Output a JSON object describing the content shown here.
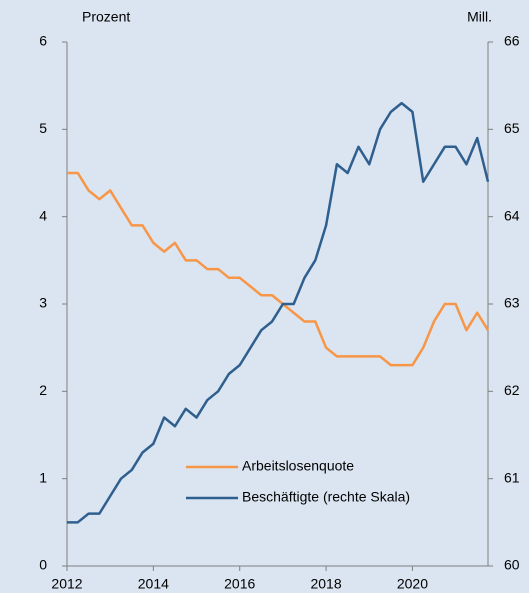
{
  "chart_data": {
    "type": "line",
    "y_label": "Prozent",
    "y2_label": "Mill.",
    "x": [
      2012,
      2012.25,
      2012.5,
      2012.75,
      2013,
      2013.25,
      2013.5,
      2013.75,
      2014,
      2014.25,
      2014.5,
      2014.75,
      2015,
      2015.25,
      2015.5,
      2015.75,
      2016,
      2016.25,
      2016.5,
      2016.75,
      2017,
      2017.25,
      2017.5,
      2017.75,
      2018,
      2018.25,
      2018.5,
      2018.75,
      2019,
      2019.25,
      2019.5,
      2019.75,
      2020,
      2020.25,
      2020.5,
      2020.75,
      2021,
      2021.25,
      2021.5,
      2021.75
    ],
    "series": [
      {
        "name": "Arbeitslosenquote",
        "color": "#f79646",
        "axis": "y",
        "values": [
          4.5,
          4.5,
          4.3,
          4.2,
          4.3,
          4.1,
          3.9,
          3.9,
          3.7,
          3.6,
          3.7,
          3.5,
          3.5,
          3.4,
          3.4,
          3.3,
          3.3,
          3.2,
          3.1,
          3.1,
          3.0,
          2.9,
          2.8,
          2.8,
          2.5,
          2.4,
          2.4,
          2.4,
          2.4,
          2.4,
          2.3,
          2.3,
          2.3,
          2.5,
          2.8,
          3.0,
          3.0,
          2.7,
          2.9,
          2.7
        ]
      },
      {
        "name": "Beschäftigte (rechte Skala)",
        "color": "#2f5f8f",
        "axis": "y2",
        "values": [
          60.5,
          60.5,
          60.6,
          60.6,
          60.8,
          61.0,
          61.1,
          61.3,
          61.4,
          61.7,
          61.6,
          61.8,
          61.7,
          61.9,
          62.0,
          62.2,
          62.3,
          62.5,
          62.7,
          62.8,
          63.0,
          63.0,
          63.3,
          63.5,
          63.9,
          64.6,
          64.5,
          64.8,
          64.6,
          65.0,
          65.2,
          65.3,
          65.2,
          64.4,
          64.6,
          64.8,
          64.8,
          64.6,
          64.9,
          64.4
        ]
      }
    ],
    "xlim": [
      2012,
      2021.75
    ],
    "xticks": [
      2012,
      2014,
      2016,
      2018,
      2020
    ],
    "ylim": [
      0,
      6
    ],
    "yticks": [
      0,
      1,
      2,
      3,
      4,
      5,
      6
    ],
    "y2lim": [
      60,
      66
    ],
    "y2ticks": [
      60,
      61,
      62,
      63,
      64,
      65,
      66
    ],
    "grid": false
  }
}
